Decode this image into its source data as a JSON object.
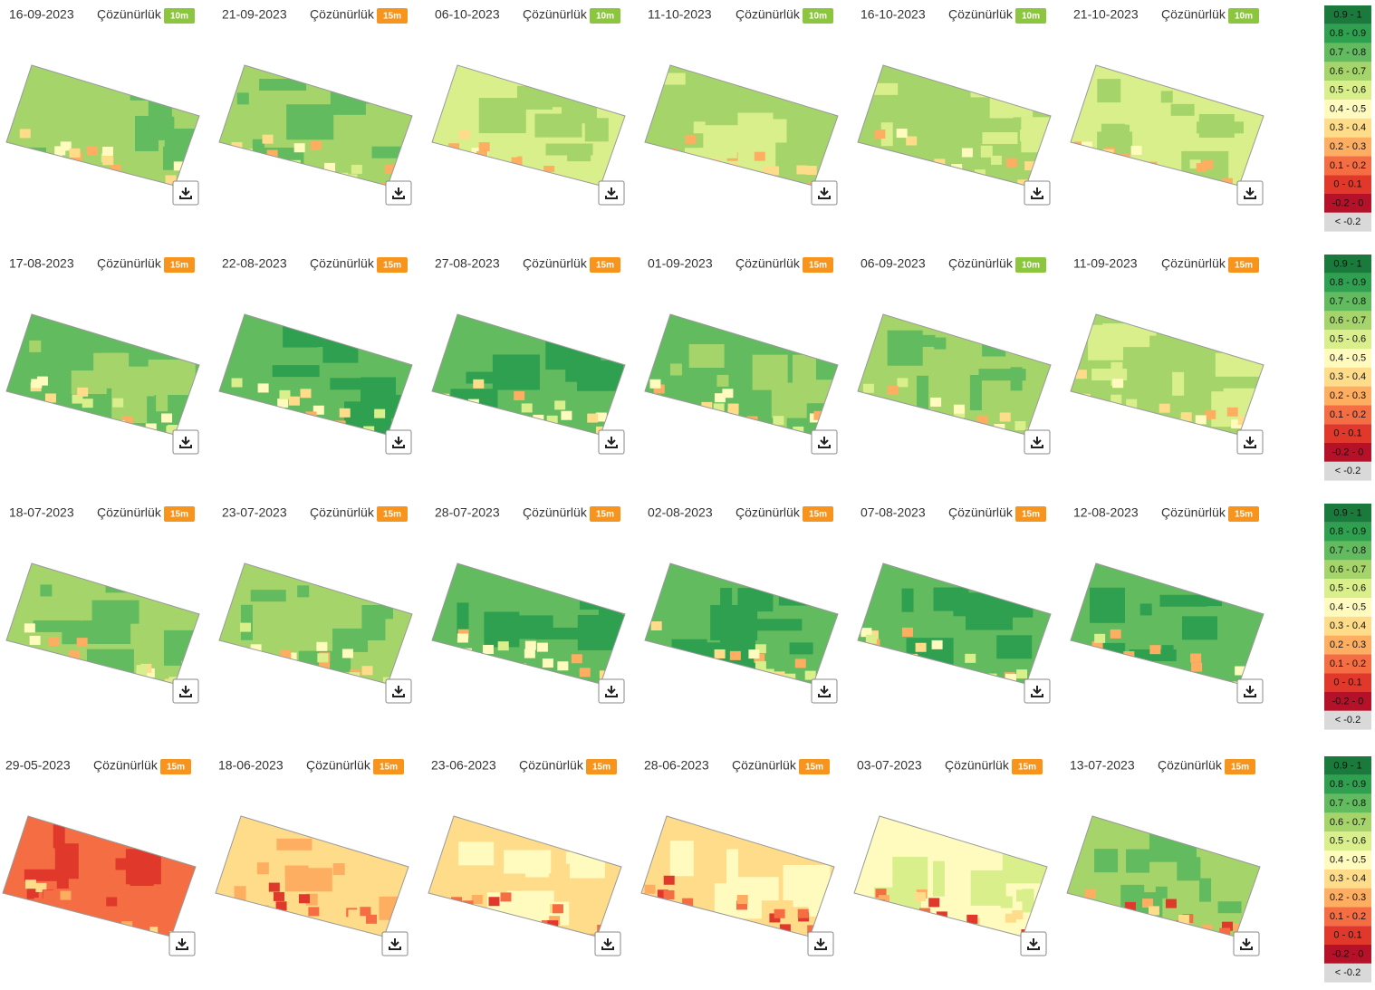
{
  "rows": [
    {
      "tiles": [
        {
          "date": "16-09-2023",
          "resolution_label": "Çözünürlük",
          "resolution": "10m",
          "badge_color": "#8cc63f"
        },
        {
          "date": "21-09-2023",
          "resolution_label": "Çözünürlük",
          "resolution": "15m",
          "badge_color": "#f7941d"
        },
        {
          "date": "06-10-2023",
          "resolution_label": "Çözünürlük",
          "resolution": "10m",
          "badge_color": "#8cc63f"
        },
        {
          "date": "11-10-2023",
          "resolution_label": "Çözünürlük",
          "resolution": "10m",
          "badge_color": "#8cc63f"
        },
        {
          "date": "16-10-2023",
          "resolution_label": "Çözünürlük",
          "resolution": "10m",
          "badge_color": "#8cc63f"
        },
        {
          "date": "21-10-2023",
          "resolution_label": "Çözünürlük",
          "resolution": "10m",
          "badge_color": "#8cc63f"
        }
      ]
    },
    {
      "tiles": [
        {
          "date": "17-08-2023",
          "resolution_label": "Çözünürlük",
          "resolution": "15m",
          "badge_color": "#f7941d"
        },
        {
          "date": "22-08-2023",
          "resolution_label": "Çözünürlük",
          "resolution": "15m",
          "badge_color": "#f7941d"
        },
        {
          "date": "27-08-2023",
          "resolution_label": "Çözünürlük",
          "resolution": "15m",
          "badge_color": "#f7941d"
        },
        {
          "date": "01-09-2023",
          "resolution_label": "Çözünürlük",
          "resolution": "15m",
          "badge_color": "#f7941d"
        },
        {
          "date": "06-09-2023",
          "resolution_label": "Çözünürlük",
          "resolution": "10m",
          "badge_color": "#8cc63f"
        },
        {
          "date": "11-09-2023",
          "resolution_label": "Çözünürlük",
          "resolution": "15m",
          "badge_color": "#f7941d"
        }
      ]
    },
    {
      "tiles": [
        {
          "date": "18-07-2023",
          "resolution_label": "Çözünürlük",
          "resolution": "15m",
          "badge_color": "#f7941d"
        },
        {
          "date": "23-07-2023",
          "resolution_label": "Çözünürlük",
          "resolution": "15m",
          "badge_color": "#f7941d"
        },
        {
          "date": "28-07-2023",
          "resolution_label": "Çözünürlük",
          "resolution": "15m",
          "badge_color": "#f7941d"
        },
        {
          "date": "02-08-2023",
          "resolution_label": "Çözünürlük",
          "resolution": "15m",
          "badge_color": "#f7941d"
        },
        {
          "date": "07-08-2023",
          "resolution_label": "Çözünürlük",
          "resolution": "15m",
          "badge_color": "#f7941d"
        },
        {
          "date": "12-08-2023",
          "resolution_label": "Çözünürlük",
          "resolution": "15m",
          "badge_color": "#f7941d"
        }
      ]
    },
    {
      "tiles": [
        {
          "date": "29-05-2023",
          "resolution_label": "Çözünürlük",
          "resolution": "15m",
          "badge_color": "#f7941d"
        },
        {
          "date": "18-06-2023",
          "resolution_label": "Çözünürlük",
          "resolution": "15m",
          "badge_color": "#f7941d"
        },
        {
          "date": "23-06-2023",
          "resolution_label": "Çözünürlük",
          "resolution": "15m",
          "badge_color": "#f7941d"
        },
        {
          "date": "28-06-2023",
          "resolution_label": "Çözünürlük",
          "resolution": "15m",
          "badge_color": "#f7941d"
        },
        {
          "date": "03-07-2023",
          "resolution_label": "Çözünürlük",
          "resolution": "15m",
          "badge_color": "#f7941d"
        },
        {
          "date": "13-07-2023",
          "resolution_label": "Çözünürlük",
          "resolution": "15m",
          "badge_color": "#f7941d"
        }
      ]
    }
  ],
  "legend": {
    "items": [
      {
        "label": "0.9 - 1",
        "color": "#1a7a3c"
      },
      {
        "label": "0.8 - 0.9",
        "color": "#2ea04f"
      },
      {
        "label": "0.7 - 0.8",
        "color": "#62bb5f"
      },
      {
        "label": "0.6 - 0.7",
        "color": "#a5d46a"
      },
      {
        "label": "0.5 - 0.6",
        "color": "#d9ef8b"
      },
      {
        "label": "0.4 - 0.5",
        "color": "#fffbbf"
      },
      {
        "label": "0.3 - 0.4",
        "color": "#fedc8a"
      },
      {
        "label": "0.2 - 0.3",
        "color": "#fdae61"
      },
      {
        "label": "0.1 - 0.2",
        "color": "#f46d43"
      },
      {
        "label": "0 - 0.1",
        "color": "#e0382b"
      },
      {
        "label": "-0.2 - 0",
        "color": "#b5122a"
      },
      {
        "label": "< -0.2",
        "color": "#d9d9d9"
      }
    ]
  }
}
